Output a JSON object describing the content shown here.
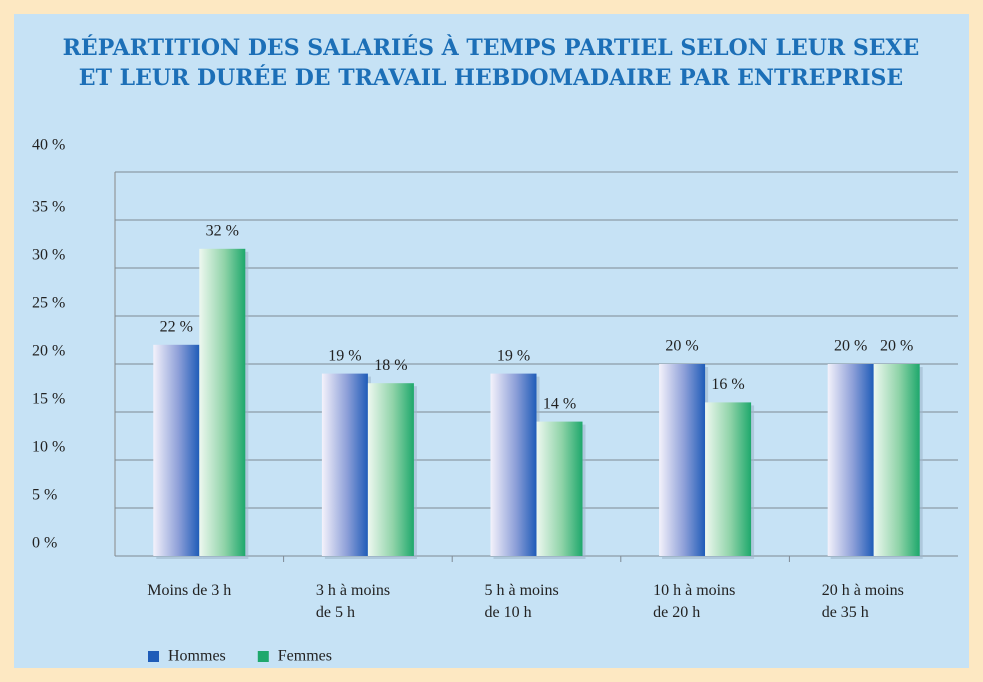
{
  "chart_data": {
    "type": "bar",
    "title": "RÉPARTITION DES SALARIÉS À TEMPS PARTIEL SELON LEUR SEXE\nET LEUR DURÉE DE TRAVAIL HEBDOMADAIRE PAR ENTREPRISE",
    "categories": [
      "Moins de 3 h",
      "3 h à moins\nde 5 h",
      "5 h à moins\nde 10 h",
      "10 h à moins\nde 20 h",
      "20 h à moins\nde 35 h"
    ],
    "series": [
      {
        "name": "Hommes",
        "color": "#1f5cb8",
        "values": [
          22,
          19,
          19,
          20,
          20
        ],
        "value_labels": [
          "22 %",
          "19 %",
          "19 %",
          "20 %",
          "20 %"
        ]
      },
      {
        "name": "Femmes",
        "color": "#1ea86c",
        "values": [
          32,
          18,
          14,
          16,
          20
        ],
        "value_labels": [
          "32 %",
          "18 %",
          "14 %",
          "16 %",
          "20 %"
        ]
      }
    ],
    "ylim": [
      0,
      40
    ],
    "yticks": [
      {
        "value": 0,
        "label": "0 %"
      },
      {
        "value": 5,
        "label": "5 %"
      },
      {
        "value": 10,
        "label": "10 %"
      },
      {
        "value": 15,
        "label": "15 %"
      },
      {
        "value": 20,
        "label": "20 %"
      },
      {
        "value": 25,
        "label": "25 %"
      },
      {
        "value": 30,
        "label": "30 %"
      },
      {
        "value": 35,
        "label": "35 %"
      },
      {
        "value": 40,
        "label": "40 %"
      }
    ],
    "grid": true,
    "legend": "bottom-left"
  }
}
